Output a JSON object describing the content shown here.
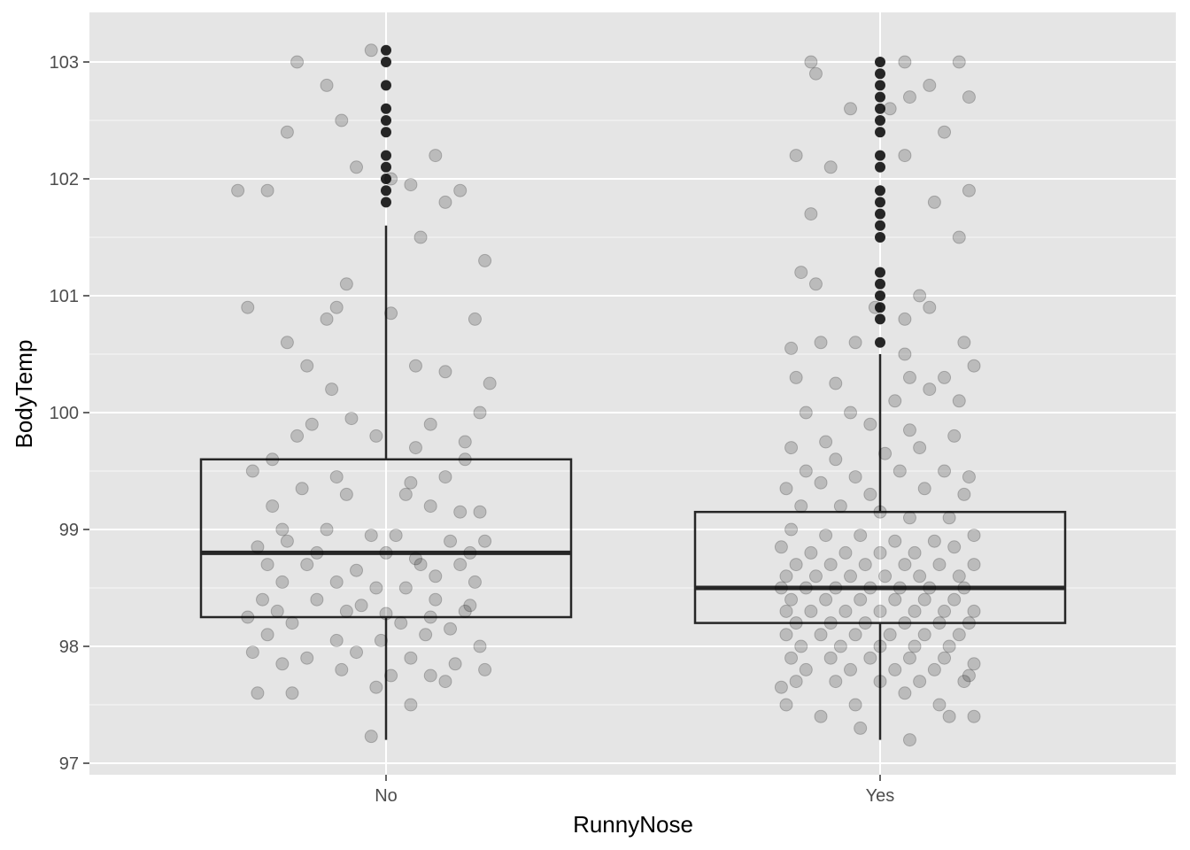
{
  "chart_data": {
    "type": "boxplot",
    "xlabel": "RunnyNose",
    "ylabel": "BodyTemp",
    "categories": [
      "No",
      "Yes"
    ],
    "ylim": [
      96.9,
      103.4
    ],
    "y_ticks": [
      97,
      98,
      99,
      100,
      101,
      102,
      103
    ],
    "grid": true,
    "legend": "none",
    "colors": {
      "panel_bg": "#e5e5e5",
      "grid_major": "#ffffff",
      "box_line": "#262626",
      "box_fill": "#e5e5e5",
      "outlier": "#262626",
      "jitter_point": "#000000",
      "tick_label": "#4d4d4d"
    },
    "boxes": [
      {
        "category": "No",
        "whisker_low": 97.2,
        "q1": 98.25,
        "median": 98.8,
        "q3": 99.6,
        "whisker_high": 101.6,
        "outliers": [
          101.8,
          101.9,
          102.0,
          102.1,
          102.2,
          102.4,
          102.5,
          102.6,
          102.8,
          103.0,
          103.1
        ]
      },
      {
        "category": "Yes",
        "whisker_low": 97.2,
        "q1": 98.2,
        "median": 98.5,
        "q3": 99.15,
        "whisker_high": 100.5,
        "outliers": [
          100.6,
          100.8,
          100.9,
          101.0,
          101.1,
          101.2,
          101.5,
          101.6,
          101.7,
          101.8,
          101.9,
          102.1,
          102.2,
          102.4,
          102.5,
          102.6,
          102.7,
          102.8,
          102.9,
          103.0
        ]
      }
    ],
    "jitter": [
      {
        "category": "No",
        "points": [
          [
            -0.18,
            103.0
          ],
          [
            -0.03,
            103.1
          ],
          [
            -0.12,
            102.8
          ],
          [
            -0.09,
            102.5
          ],
          [
            -0.2,
            102.4
          ],
          [
            0.1,
            102.2
          ],
          [
            -0.06,
            102.1
          ],
          [
            0.01,
            102.0
          ],
          [
            -0.3,
            101.9
          ],
          [
            -0.24,
            101.9
          ],
          [
            0.05,
            101.95
          ],
          [
            0.12,
            101.8
          ],
          [
            0.15,
            101.9
          ],
          [
            0.2,
            101.3
          ],
          [
            0.07,
            101.5
          ],
          [
            -0.08,
            101.1
          ],
          [
            -0.28,
            100.9
          ],
          [
            -0.12,
            100.8
          ],
          [
            -0.1,
            100.9
          ],
          [
            0.01,
            100.85
          ],
          [
            0.18,
            100.8
          ],
          [
            0.06,
            100.4
          ],
          [
            0.12,
            100.35
          ],
          [
            -0.2,
            100.6
          ],
          [
            -0.16,
            100.4
          ],
          [
            -0.11,
            100.2
          ],
          [
            0.21,
            100.25
          ],
          [
            0.19,
            100.0
          ],
          [
            0.16,
            99.75
          ],
          [
            -0.15,
            99.9
          ],
          [
            0.09,
            99.9
          ],
          [
            -0.02,
            99.8
          ],
          [
            -0.07,
            99.95
          ],
          [
            -0.18,
            99.8
          ],
          [
            -0.23,
            99.6
          ],
          [
            0.06,
            99.7
          ],
          [
            0.16,
            99.6
          ],
          [
            -0.27,
            99.5
          ],
          [
            -0.1,
            99.45
          ],
          [
            0.05,
            99.4
          ],
          [
            0.12,
            99.45
          ],
          [
            0.04,
            99.3
          ],
          [
            -0.08,
            99.3
          ],
          [
            -0.17,
            99.35
          ],
          [
            -0.23,
            99.2
          ],
          [
            0.09,
            99.2
          ],
          [
            0.15,
            99.15
          ],
          [
            0.19,
            99.15
          ],
          [
            -0.21,
            99.0
          ],
          [
            -0.12,
            99.0
          ],
          [
            -0.03,
            98.95
          ],
          [
            0.02,
            98.95
          ],
          [
            0.13,
            98.9
          ],
          [
            0.2,
            98.9
          ],
          [
            -0.26,
            98.85
          ],
          [
            -0.2,
            98.9
          ],
          [
            -0.14,
            98.8
          ],
          [
            0.0,
            98.8
          ],
          [
            0.06,
            98.75
          ],
          [
            0.17,
            98.8
          ],
          [
            -0.24,
            98.7
          ],
          [
            -0.16,
            98.7
          ],
          [
            -0.06,
            98.65
          ],
          [
            0.07,
            98.7
          ],
          [
            0.15,
            98.7
          ],
          [
            0.1,
            98.6
          ],
          [
            -0.21,
            98.55
          ],
          [
            -0.1,
            98.55
          ],
          [
            -0.02,
            98.5
          ],
          [
            0.04,
            98.5
          ],
          [
            0.18,
            98.55
          ],
          [
            -0.25,
            98.4
          ],
          [
            -0.14,
            98.4
          ],
          [
            -0.05,
            98.35
          ],
          [
            0.1,
            98.4
          ],
          [
            0.17,
            98.35
          ],
          [
            -0.22,
            98.3
          ],
          [
            -0.08,
            98.3
          ],
          [
            0.0,
            98.28
          ],
          [
            0.09,
            98.25
          ],
          [
            0.16,
            98.3
          ],
          [
            -0.28,
            98.25
          ],
          [
            -0.19,
            98.2
          ],
          [
            0.03,
            98.2
          ],
          [
            0.13,
            98.15
          ],
          [
            -0.24,
            98.1
          ],
          [
            -0.1,
            98.05
          ],
          [
            -0.01,
            98.05
          ],
          [
            0.08,
            98.1
          ],
          [
            0.19,
            98.0
          ],
          [
            -0.27,
            97.95
          ],
          [
            -0.16,
            97.9
          ],
          [
            -0.06,
            97.95
          ],
          [
            0.05,
            97.9
          ],
          [
            0.14,
            97.85
          ],
          [
            -0.21,
            97.85
          ],
          [
            -0.09,
            97.8
          ],
          [
            0.01,
            97.75
          ],
          [
            0.09,
            97.75
          ],
          [
            0.2,
            97.8
          ],
          [
            -0.19,
            97.6
          ],
          [
            -0.26,
            97.6
          ],
          [
            -0.02,
            97.65
          ],
          [
            0.05,
            97.5
          ],
          [
            -0.03,
            97.23
          ],
          [
            0.12,
            97.7
          ]
        ]
      },
      {
        "category": "Yes",
        "points": [
          [
            -0.14,
            103.0
          ],
          [
            0.05,
            103.0
          ],
          [
            0.16,
            103.0
          ],
          [
            0.1,
            102.8
          ],
          [
            -0.13,
            102.9
          ],
          [
            0.06,
            102.7
          ],
          [
            0.18,
            102.7
          ],
          [
            0.02,
            102.6
          ],
          [
            -0.06,
            102.6
          ],
          [
            -0.1,
            102.1
          ],
          [
            0.13,
            102.4
          ],
          [
            0.05,
            102.2
          ],
          [
            -0.17,
            102.2
          ],
          [
            0.18,
            101.9
          ],
          [
            -0.14,
            101.7
          ],
          [
            0.11,
            101.8
          ],
          [
            0.16,
            101.5
          ],
          [
            -0.16,
            101.2
          ],
          [
            -0.13,
            101.1
          ],
          [
            0.08,
            101.0
          ],
          [
            -0.01,
            100.9
          ],
          [
            0.05,
            100.8
          ],
          [
            0.1,
            100.9
          ],
          [
            0.17,
            100.6
          ],
          [
            -0.18,
            100.55
          ],
          [
            -0.12,
            100.6
          ],
          [
            -0.05,
            100.6
          ],
          [
            0.05,
            100.5
          ],
          [
            -0.17,
            100.3
          ],
          [
            -0.09,
            100.25
          ],
          [
            0.06,
            100.3
          ],
          [
            0.13,
            100.3
          ],
          [
            0.19,
            100.4
          ],
          [
            -0.15,
            100.0
          ],
          [
            -0.06,
            100.0
          ],
          [
            0.03,
            100.1
          ],
          [
            0.1,
            100.2
          ],
          [
            0.16,
            100.1
          ],
          [
            -0.02,
            99.9
          ],
          [
            0.06,
            99.85
          ],
          [
            -0.11,
            99.75
          ],
          [
            0.15,
            99.8
          ],
          [
            -0.18,
            99.7
          ],
          [
            -0.09,
            99.6
          ],
          [
            0.01,
            99.65
          ],
          [
            0.08,
            99.7
          ],
          [
            -0.15,
            99.5
          ],
          [
            -0.05,
            99.45
          ],
          [
            0.04,
            99.5
          ],
          [
            0.13,
            99.5
          ],
          [
            0.18,
            99.45
          ],
          [
            -0.19,
            99.35
          ],
          [
            -0.12,
            99.4
          ],
          [
            -0.02,
            99.3
          ],
          [
            0.09,
            99.35
          ],
          [
            0.17,
            99.3
          ],
          [
            -0.16,
            99.2
          ],
          [
            -0.08,
            99.2
          ],
          [
            0.0,
            99.15
          ],
          [
            0.06,
            99.1
          ],
          [
            0.14,
            99.1
          ],
          [
            -0.18,
            99.0
          ],
          [
            -0.11,
            98.95
          ],
          [
            -0.04,
            98.95
          ],
          [
            0.03,
            98.9
          ],
          [
            0.11,
            98.9
          ],
          [
            0.19,
            98.95
          ],
          [
            -0.2,
            98.85
          ],
          [
            -0.14,
            98.8
          ],
          [
            -0.07,
            98.8
          ],
          [
            0.0,
            98.8
          ],
          [
            0.07,
            98.8
          ],
          [
            0.15,
            98.85
          ],
          [
            -0.17,
            98.7
          ],
          [
            -0.1,
            98.7
          ],
          [
            -0.03,
            98.7
          ],
          [
            0.05,
            98.7
          ],
          [
            0.12,
            98.7
          ],
          [
            0.19,
            98.7
          ],
          [
            -0.19,
            98.6
          ],
          [
            -0.13,
            98.6
          ],
          [
            -0.06,
            98.6
          ],
          [
            0.01,
            98.6
          ],
          [
            0.08,
            98.6
          ],
          [
            0.16,
            98.6
          ],
          [
            -0.2,
            98.5
          ],
          [
            -0.15,
            98.5
          ],
          [
            -0.09,
            98.5
          ],
          [
            -0.02,
            98.5
          ],
          [
            0.04,
            98.5
          ],
          [
            0.1,
            98.5
          ],
          [
            0.17,
            98.5
          ],
          [
            -0.18,
            98.4
          ],
          [
            -0.11,
            98.4
          ],
          [
            -0.04,
            98.4
          ],
          [
            0.03,
            98.4
          ],
          [
            0.09,
            98.4
          ],
          [
            0.15,
            98.4
          ],
          [
            -0.19,
            98.3
          ],
          [
            -0.14,
            98.3
          ],
          [
            -0.07,
            98.3
          ],
          [
            0.0,
            98.3
          ],
          [
            0.07,
            98.3
          ],
          [
            0.13,
            98.3
          ],
          [
            0.19,
            98.3
          ],
          [
            -0.17,
            98.2
          ],
          [
            -0.1,
            98.2
          ],
          [
            -0.03,
            98.2
          ],
          [
            0.05,
            98.2
          ],
          [
            0.12,
            98.2
          ],
          [
            0.18,
            98.2
          ],
          [
            -0.19,
            98.1
          ],
          [
            -0.12,
            98.1
          ],
          [
            -0.05,
            98.1
          ],
          [
            0.02,
            98.1
          ],
          [
            0.09,
            98.1
          ],
          [
            0.16,
            98.1
          ],
          [
            -0.16,
            98.0
          ],
          [
            -0.08,
            98.0
          ],
          [
            0.0,
            98.0
          ],
          [
            0.07,
            98.0
          ],
          [
            0.14,
            98.0
          ],
          [
            -0.18,
            97.9
          ],
          [
            -0.1,
            97.9
          ],
          [
            -0.02,
            97.9
          ],
          [
            0.06,
            97.9
          ],
          [
            0.13,
            97.9
          ],
          [
            0.19,
            97.85
          ],
          [
            -0.15,
            97.8
          ],
          [
            -0.06,
            97.8
          ],
          [
            0.03,
            97.8
          ],
          [
            0.11,
            97.8
          ],
          [
            -0.17,
            97.7
          ],
          [
            -0.09,
            97.7
          ],
          [
            0.0,
            97.7
          ],
          [
            0.08,
            97.7
          ],
          [
            0.17,
            97.7
          ],
          [
            -0.19,
            97.5
          ],
          [
            -0.12,
            97.4
          ],
          [
            -0.05,
            97.5
          ],
          [
            0.05,
            97.6
          ],
          [
            0.12,
            97.5
          ],
          [
            0.19,
            97.4
          ],
          [
            -0.04,
            97.3
          ],
          [
            0.06,
            97.2
          ],
          [
            0.14,
            97.4
          ],
          [
            0.18,
            97.75
          ],
          [
            -0.2,
            97.65
          ]
        ]
      }
    ]
  }
}
